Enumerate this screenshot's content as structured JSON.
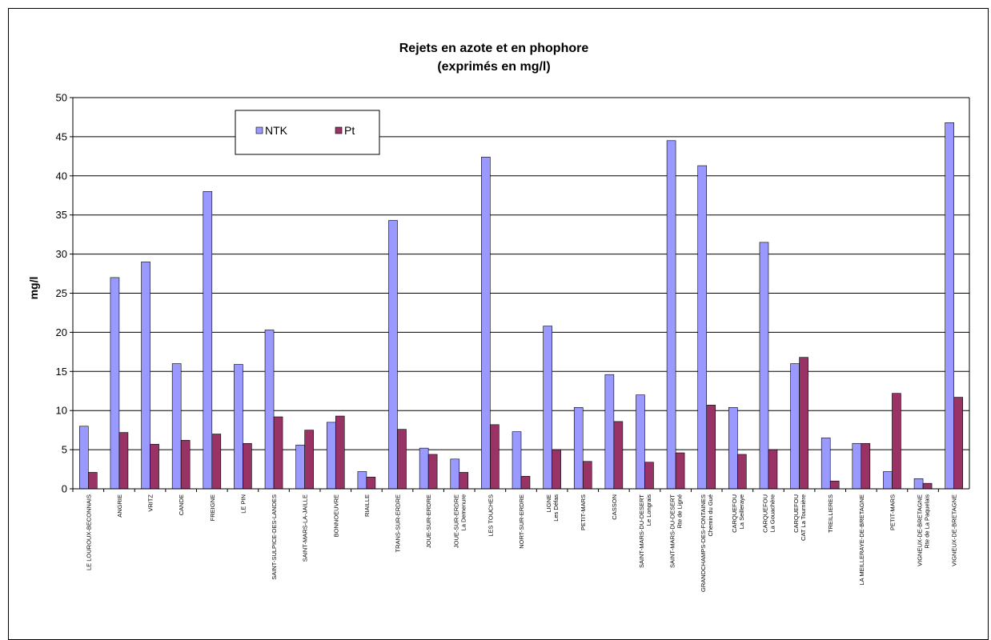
{
  "chart_data": {
    "type": "bar",
    "title": "Rejets en azote et en phophore",
    "subtitle": "(exprimés en mg/l)",
    "xlabel": "",
    "ylabel": "mg/l",
    "ylim": [
      0,
      50
    ],
    "yticks": [
      0,
      5,
      10,
      15,
      20,
      25,
      30,
      35,
      40,
      45,
      50
    ],
    "grid": true,
    "legend_position": "top-left",
    "colors": {
      "NTK": "#9999ff",
      "Pt": "#993366"
    },
    "categories": [
      [
        "LE LOUROUX-BECONNAIS"
      ],
      [
        "ANGRIE"
      ],
      [
        "VRITZ"
      ],
      [
        "CANDE"
      ],
      [
        "FREIGNE"
      ],
      [
        "LE PIN"
      ],
      [
        "SAINT-SULPICE-DES-LANDES"
      ],
      [
        "SAINT-MARS-LA-JAILLE"
      ],
      [
        "BONNOEUVRE"
      ],
      [
        "RIAILLE"
      ],
      [
        "TRANS-SUR-ERDRE"
      ],
      [
        "JOUE-SUR-ERDRE"
      ],
      [
        "JOUE-SUR-ERDRE",
        "La Demenure"
      ],
      [
        "LES TOUCHES"
      ],
      [
        "NORT-SUR-ERDRE"
      ],
      [
        "LIGNE",
        "Les Défas"
      ],
      [
        "PETIT-MARS"
      ],
      [
        "CASSON"
      ],
      [
        "SAINT-MARS-DU-DESERT",
        "Le Longrais"
      ],
      [
        "SAINT-MARS-DU-DESERT",
        "Rte de Ligné"
      ],
      [
        "GRANDCHAMPS-DES-FONTAINES",
        "Chemin du Gué"
      ],
      [
        "CARQUEFOU",
        "La Seilleraye"
      ],
      [
        "CARQUEFOU",
        "La Gouachère"
      ],
      [
        "CARQUEFOU",
        "CAT La Tournière"
      ],
      [
        "TREILLIERES"
      ],
      [
        "LA MEILLERAYE-DE-BRETAGNE"
      ],
      [
        "PETIT-MARS"
      ],
      [
        "VIGNEUX-DE-BRETAGNE",
        "Rte de La Paquelais"
      ],
      [
        "VIGNEUX-DE-BRETAGNE"
      ]
    ],
    "series": [
      {
        "name": "NTK",
        "values": [
          8.0,
          27.0,
          29.0,
          16.0,
          38.0,
          15.9,
          20.3,
          5.6,
          8.5,
          2.2,
          34.3,
          5.2,
          3.8,
          42.4,
          7.3,
          20.8,
          10.4,
          14.6,
          12.0,
          44.5,
          41.3,
          10.4,
          31.5,
          16.0,
          6.5,
          5.8,
          2.2,
          1.3,
          46.8
        ]
      },
      {
        "name": "Pt",
        "values": [
          2.1,
          7.2,
          5.7,
          6.2,
          7.0,
          5.8,
          9.2,
          7.5,
          9.3,
          1.5,
          7.6,
          4.4,
          2.1,
          8.2,
          1.6,
          5.0,
          3.5,
          8.6,
          3.4,
          4.6,
          10.7,
          4.4,
          5.0,
          16.8,
          1.0,
          5.8,
          12.2,
          0.7,
          11.7
        ]
      }
    ]
  }
}
